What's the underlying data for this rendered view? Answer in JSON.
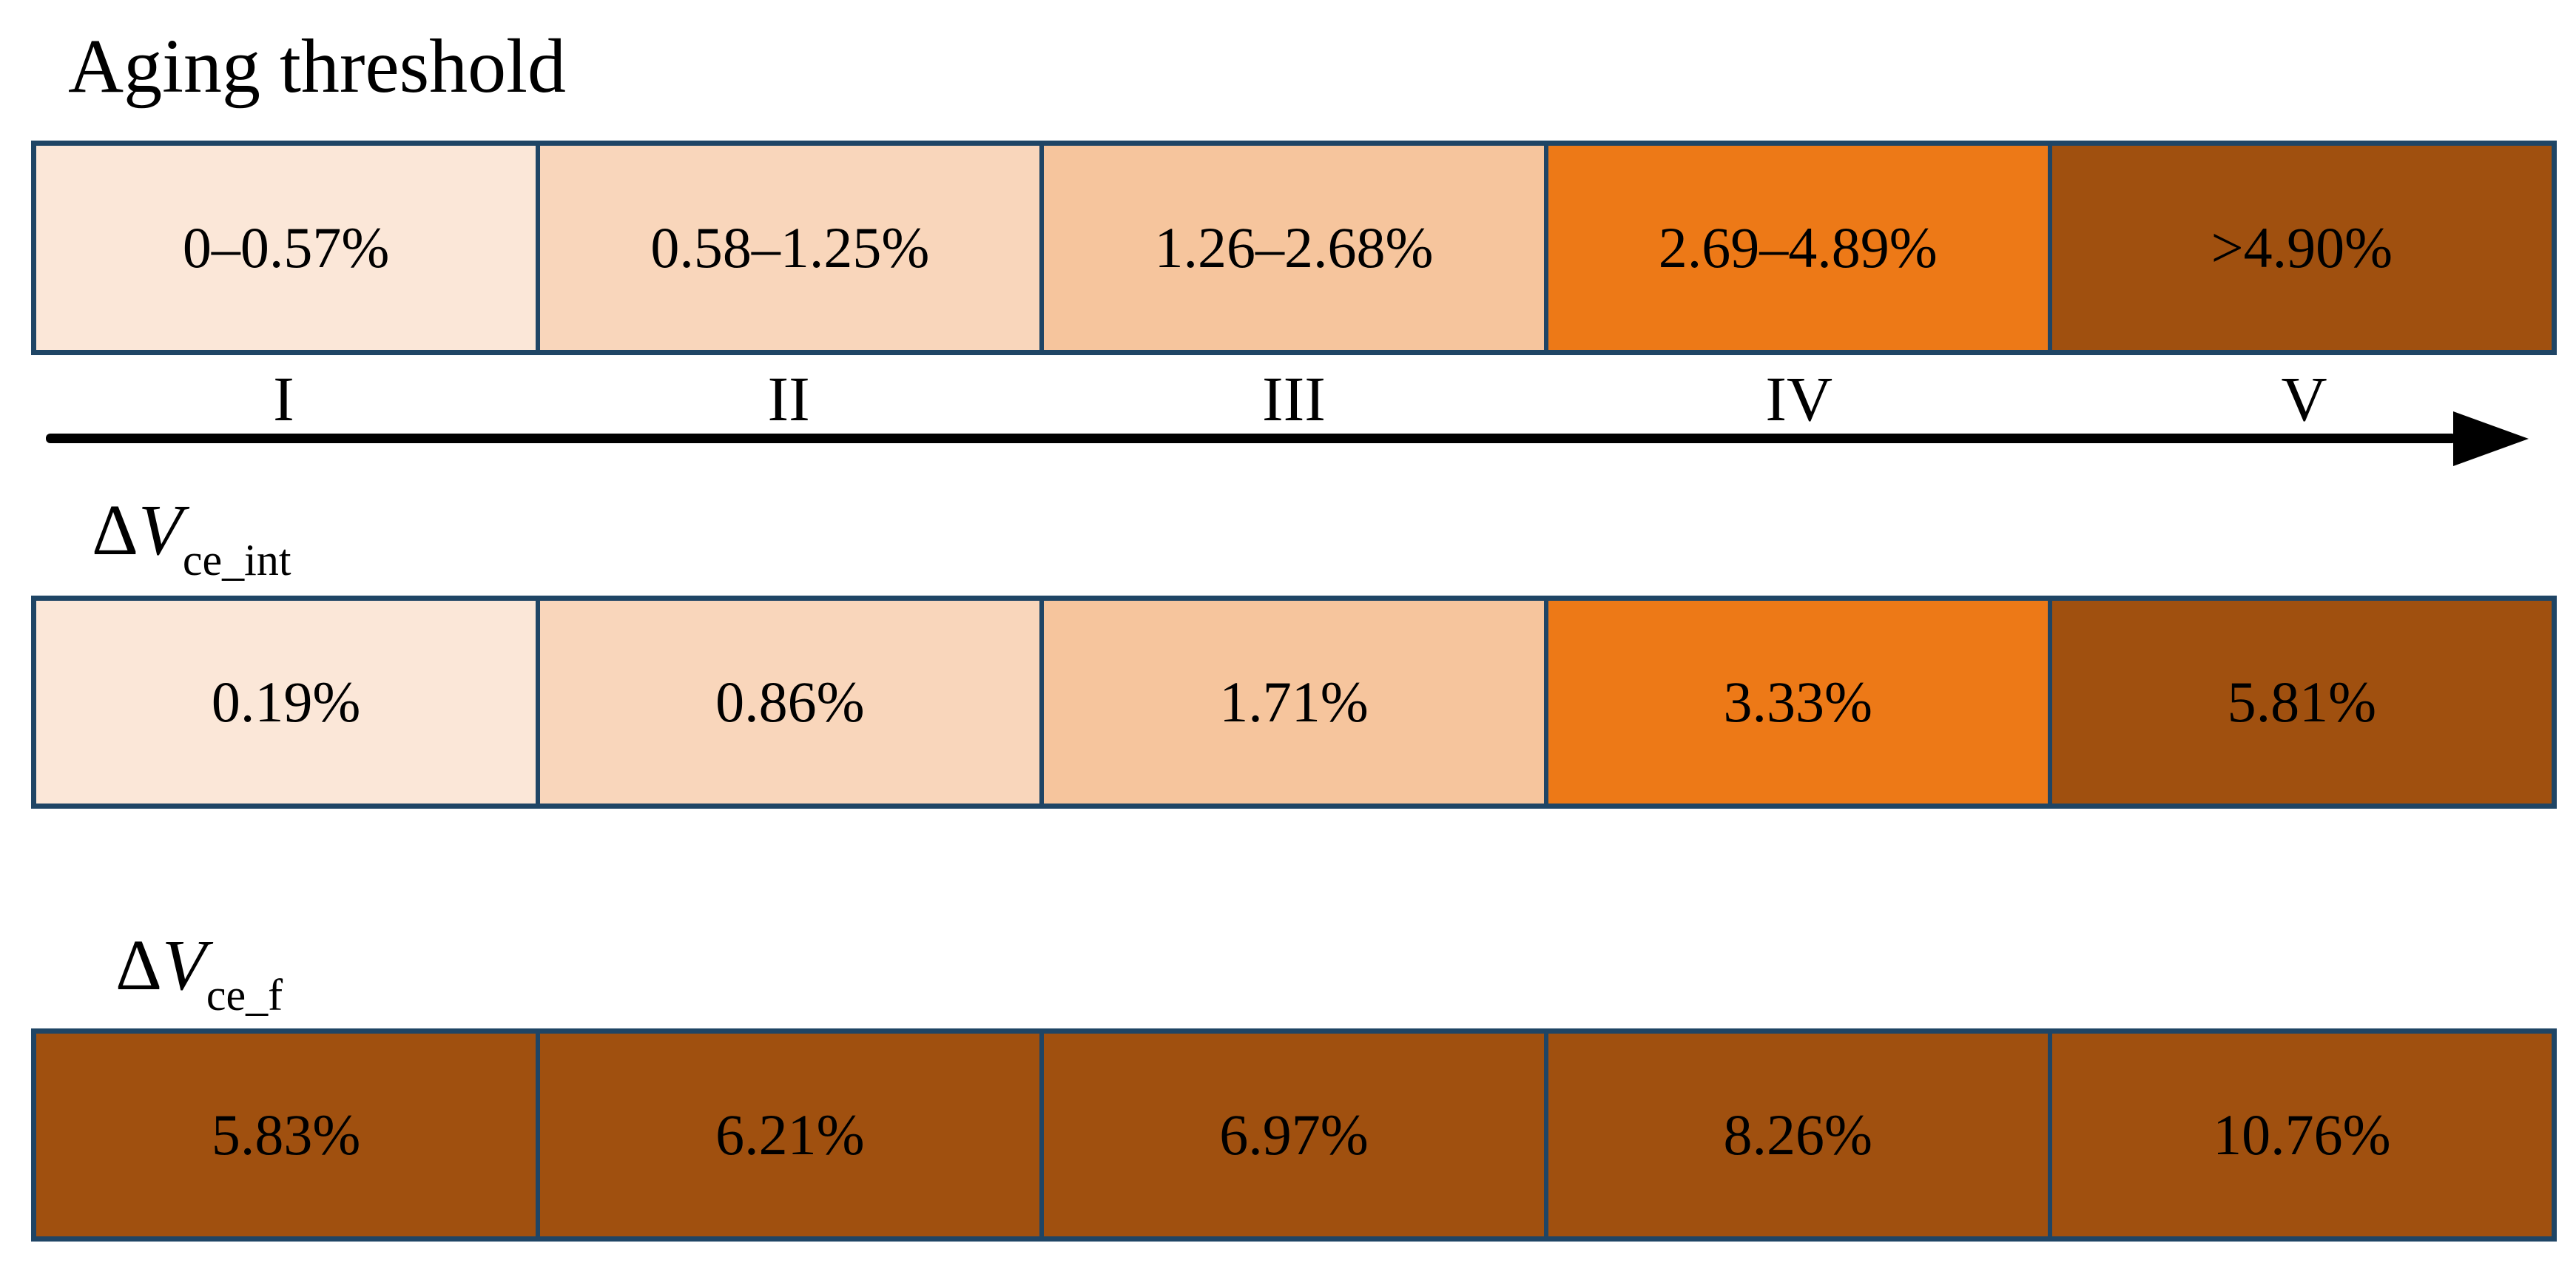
{
  "title": "Aging threshold",
  "axis": {
    "numerals": [
      "I",
      "II",
      "III",
      "IV",
      "V"
    ]
  },
  "colors": {
    "border": "#1F4565",
    "arrow": "#000000",
    "level_1": "#FBE7D8",
    "level_2": "#F9D6BB",
    "level_3": "#F6C59D",
    "level_4": "#ED7917",
    "level_5": "#A0500F"
  },
  "bars": [
    {
      "id": "aging-threshold",
      "segments": [
        {
          "text": "0–0.57%",
          "color": "#FBE7D8"
        },
        {
          "text": "0.58–1.25%",
          "color": "#F9D6BB"
        },
        {
          "text": "1.26–2.68%",
          "color": "#F6C59D"
        },
        {
          "text": "2.69–4.89%",
          "color": "#ED7917"
        },
        {
          "text": ">4.90%",
          "color": "#A0500F"
        }
      ]
    },
    {
      "id": "delta-vce-int",
      "label": {
        "delta": "Δ",
        "variable": "V",
        "subscript": "ce_int"
      },
      "segments": [
        {
          "text": "0.19%",
          "color": "#FBE7D8"
        },
        {
          "text": "0.86%",
          "color": "#F9D6BB"
        },
        {
          "text": "1.71%",
          "color": "#F6C59D"
        },
        {
          "text": "3.33%",
          "color": "#ED7917"
        },
        {
          "text": "5.81%",
          "color": "#A0500F"
        }
      ]
    },
    {
      "id": "delta-vce-f",
      "label": {
        "delta": "Δ",
        "variable": "V",
        "subscript": "ce_f"
      },
      "segments": [
        {
          "text": "5.83%",
          "color": "#A0500F"
        },
        {
          "text": "6.21%",
          "color": "#A0500F"
        },
        {
          "text": "6.97%",
          "color": "#A0500F"
        },
        {
          "text": "8.26%",
          "color": "#A0500F"
        },
        {
          "text": "10.76%",
          "color": "#A0500F"
        }
      ]
    }
  ]
}
